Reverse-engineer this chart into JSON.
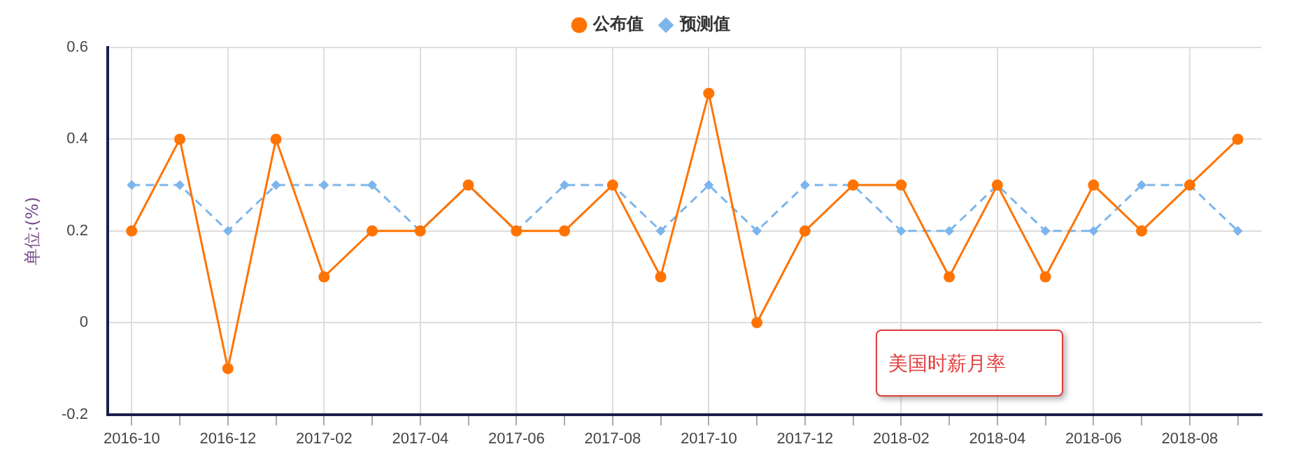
{
  "chart_data": {
    "type": "line",
    "ylabel": "单位:(%)",
    "categories": [
      "2016-10",
      null,
      "2016-12",
      null,
      "2017-02",
      null,
      "2017-04",
      null,
      "2017-06",
      null,
      "2017-08",
      null,
      "2017-10",
      null,
      "2017-12",
      null,
      "2018-02",
      null,
      "2018-04",
      null,
      "2018-06",
      null,
      "2018-08",
      null
    ],
    "series": [
      {
        "name": "公布值",
        "color": "#ff7300",
        "marker": "circle",
        "line_style": "solid",
        "values": [
          0.2,
          0.4,
          -0.1,
          0.4,
          0.1,
          0.2,
          0.2,
          0.3,
          0.2,
          0.2,
          0.3,
          0.1,
          0.5,
          0,
          0.2,
          0.3,
          0.3,
          0.1,
          0.3,
          0.1,
          0.3,
          0.2,
          0.3,
          0.4
        ]
      },
      {
        "name": "预测值",
        "color": "#7cb5ec",
        "marker": "diamond",
        "line_style": "dashed",
        "values": [
          0.3,
          0.3,
          0.2,
          0.3,
          0.3,
          0.3,
          0.2,
          0.3,
          0.2,
          0.3,
          0.3,
          0.2,
          0.3,
          0.2,
          0.3,
          0.3,
          0.2,
          0.2,
          0.3,
          0.2,
          0.2,
          0.3,
          0.3,
          0.2
        ]
      }
    ],
    "ylim": [
      -0.2,
      0.6
    ],
    "yticks": [
      -0.2,
      0,
      0.2,
      0.4,
      0.6
    ],
    "grid": true,
    "legend": "top",
    "annotations": [
      "美国时薪月率"
    ]
  }
}
